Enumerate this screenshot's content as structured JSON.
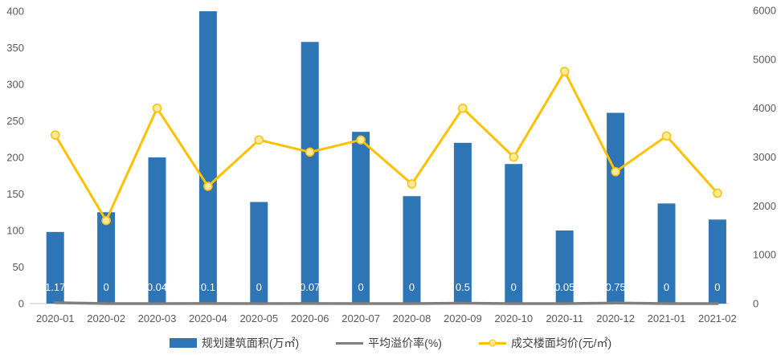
{
  "chart_data": {
    "type": "bar",
    "subtype": "combo-bar-line",
    "title": "",
    "categories": [
      "2020-01",
      "2020-02",
      "2020-03",
      "2020-04",
      "2020-05",
      "2020-06",
      "2020-07",
      "2020-08",
      "2020-09",
      "2020-10",
      "2020-11",
      "2020-12",
      "2021-01",
      "2021-02"
    ],
    "series": [
      {
        "name": "规划建筑面积(万㎡)",
        "type": "bar",
        "axis": "left",
        "color": "#2E75B6",
        "values": [
          98,
          125,
          200,
          400,
          139,
          358,
          235,
          147,
          220,
          191,
          100,
          261,
          137,
          115
        ]
      },
      {
        "name": "平均溢价率(%)",
        "type": "line",
        "axis": "left",
        "color": "#7F7F7F",
        "values": [
          1.17,
          0,
          0.04,
          0.1,
          0,
          0.07,
          0,
          0,
          0.5,
          0,
          0.05,
          0.75,
          0,
          0
        ],
        "data_labels": [
          "1.17",
          "0",
          "0.04",
          "0.1",
          "0",
          "0.07",
          "0",
          "0",
          "0.5",
          "0",
          "0.05",
          "0.75",
          "0",
          "0"
        ],
        "data_label_color": "#FFFFFF"
      },
      {
        "name": "成交楼面均价(元/㎡)",
        "type": "line",
        "axis": "right",
        "color": "#FFC000",
        "marker_fill": "#FFE99A",
        "values": [
          3450,
          1700,
          4000,
          2400,
          3350,
          3100,
          3350,
          2450,
          4000,
          3000,
          4750,
          2700,
          3430,
          2260
        ]
      }
    ],
    "left_axis": {
      "min": 0,
      "max": 400,
      "step": 50,
      "ticks": [
        "0",
        "50",
        "100",
        "150",
        "200",
        "250",
        "300",
        "350",
        "400"
      ]
    },
    "right_axis": {
      "min": 0,
      "max": 6000,
      "step": 1000,
      "ticks": [
        "0",
        "1000",
        "2000",
        "3000",
        "4000",
        "5000",
        "6000"
      ]
    },
    "legend_position": "bottom",
    "grid": false,
    "axis_line_color": "#D9D9D9",
    "tick_label_color": "#595959"
  }
}
